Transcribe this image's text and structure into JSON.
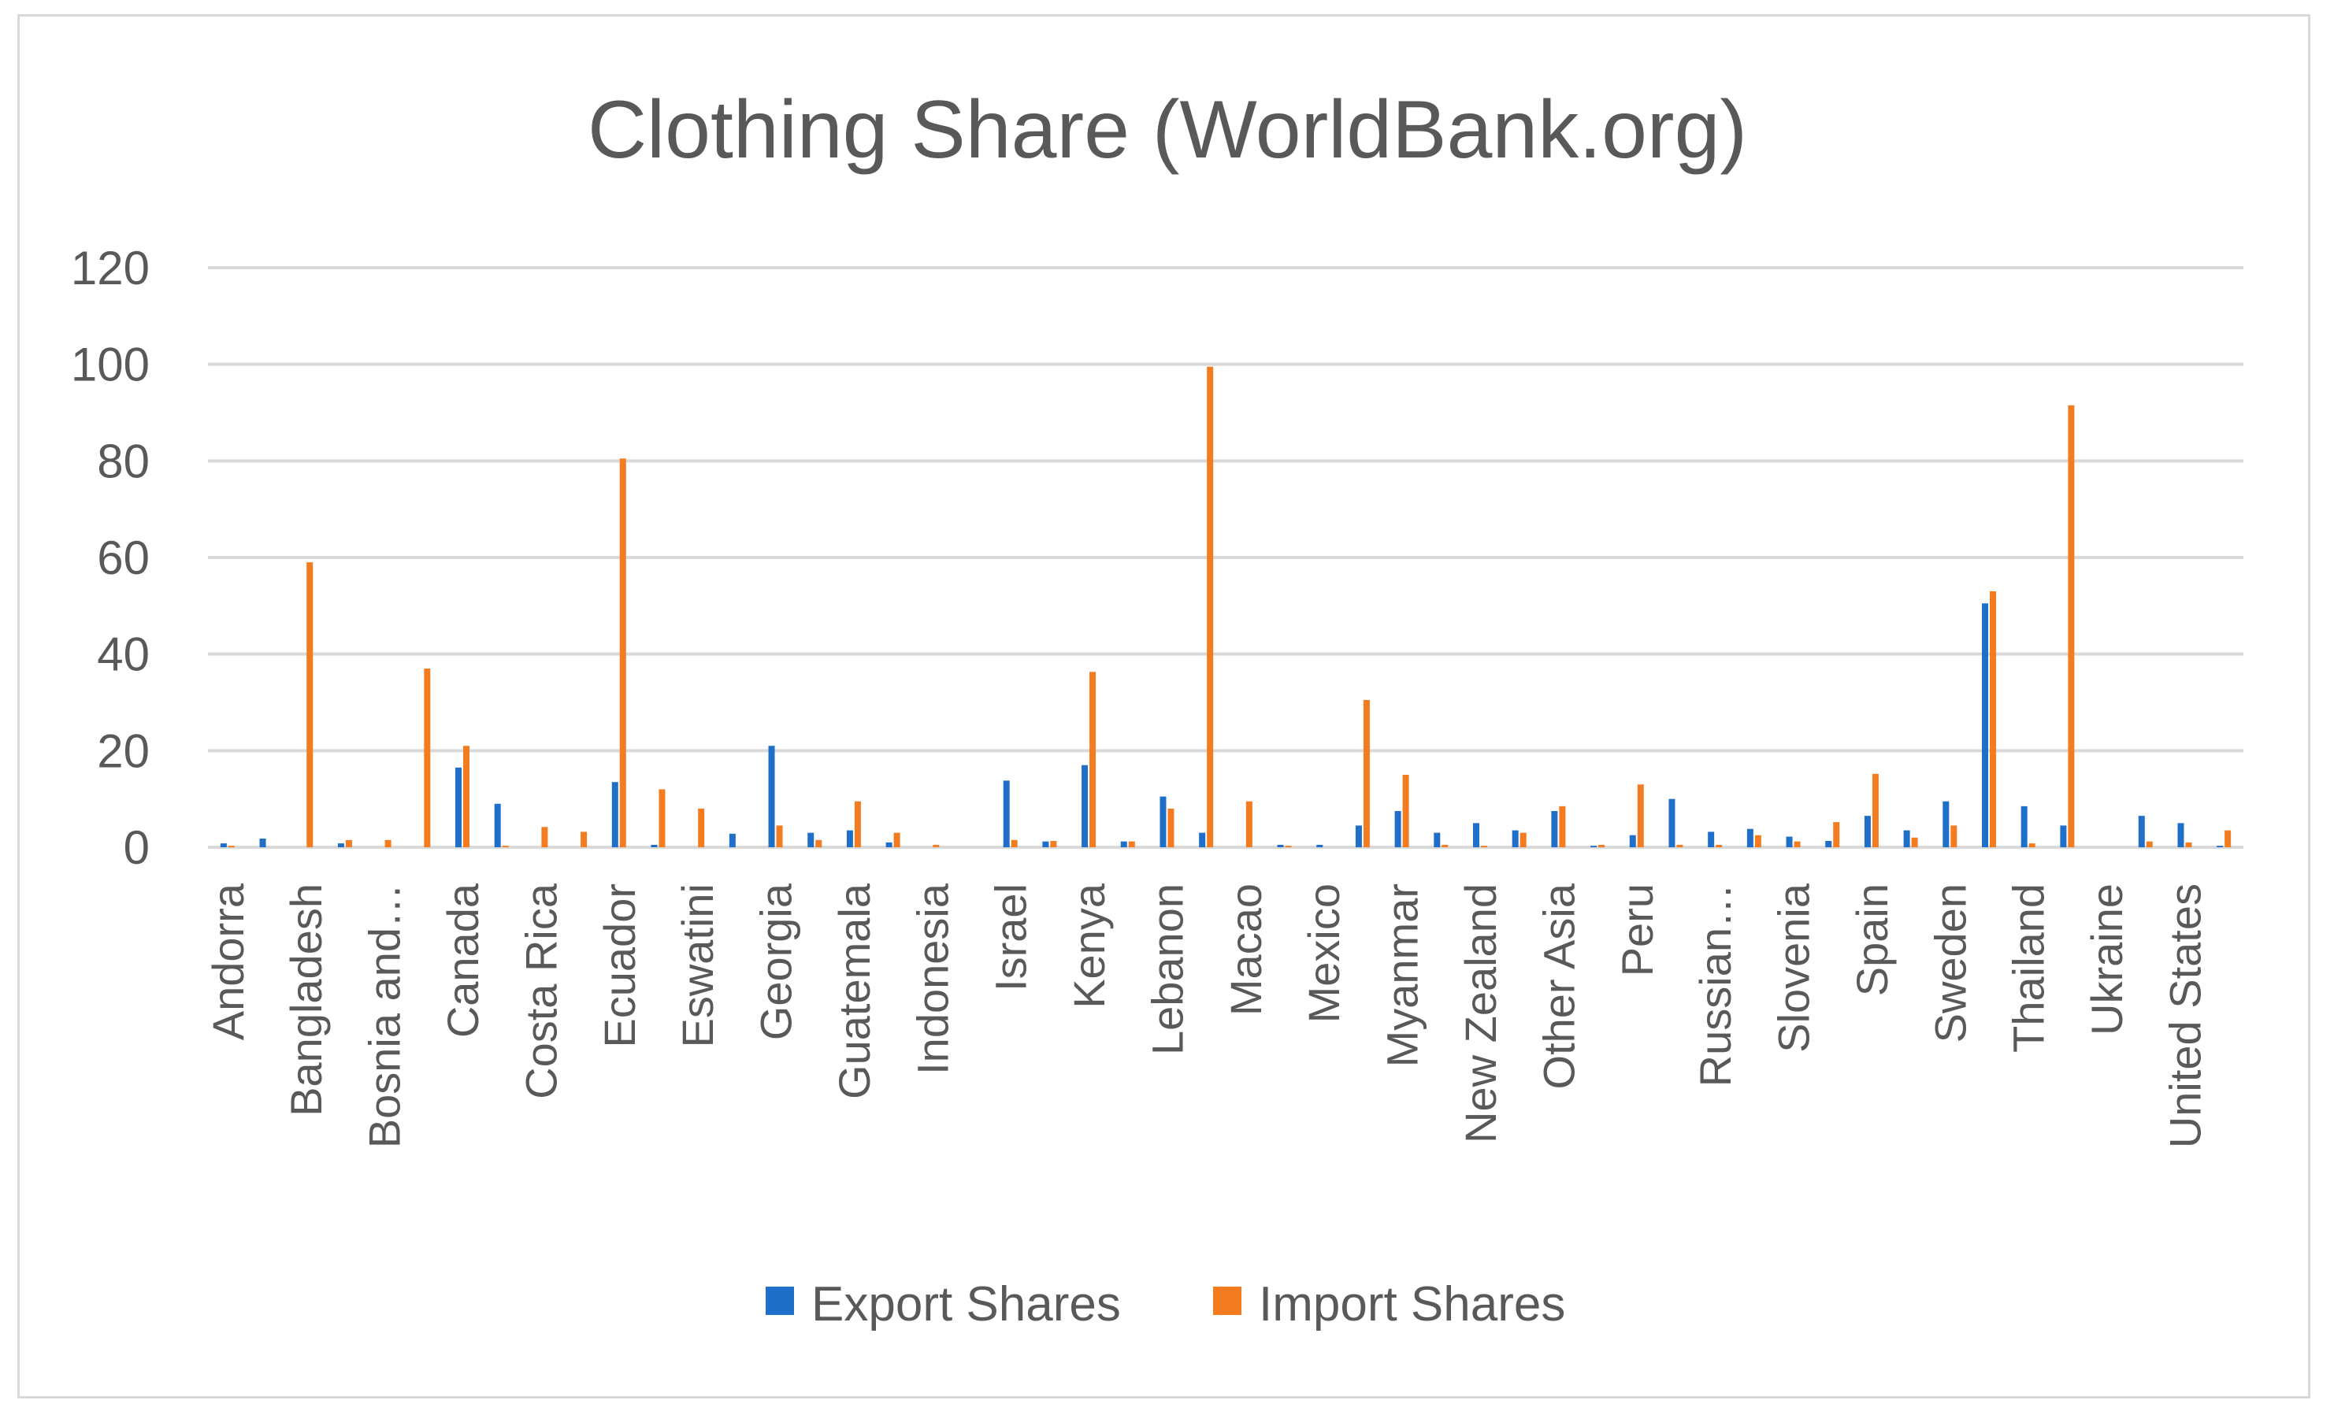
{
  "chart_data": {
    "type": "bar",
    "title": "Clothing Share (WorldBank.org)",
    "xlabel": "",
    "ylabel": "",
    "ylim": [
      0,
      120
    ],
    "yticks": [
      0,
      20,
      40,
      60,
      80,
      100,
      120
    ],
    "grid": true,
    "legend_position": "bottom",
    "categories": [
      "Andorra",
      "",
      "Bangladesh",
      "",
      "Bosnia and…",
      "",
      "Canada",
      "",
      "Costa Rica",
      "",
      "Ecuador",
      "",
      "Eswatini",
      "",
      "Georgia",
      "",
      "Guatemala",
      "",
      "Indonesia",
      "",
      "Israel",
      "",
      "Kenya",
      "",
      "Lebanon",
      "",
      "Macao",
      "",
      "Mexico",
      "",
      "Myanmar",
      "",
      "New Zealand",
      "",
      "Other Asia",
      "",
      "Peru",
      "",
      "Russian…",
      "",
      "Slovenia",
      "",
      "Spain",
      "",
      "Sweden",
      "",
      "Thailand",
      "",
      "Ukraine",
      "",
      "United States",
      ""
    ],
    "series": [
      {
        "name": "Export Shares",
        "color": "#1f6fc9",
        "values": [
          0.8,
          1.8,
          0,
          0.8,
          0,
          0,
          16.5,
          9,
          0,
          0,
          13.5,
          0.5,
          0,
          2.8,
          21,
          3,
          3.5,
          1,
          0,
          0,
          13.8,
          1.2,
          17,
          1.2,
          10.5,
          3,
          0,
          0.5,
          0.5,
          4.5,
          7.5,
          3,
          5,
          3.5,
          7.5,
          0.3,
          2.5,
          10,
          3.2,
          3.8,
          2.2,
          1.3,
          6.5,
          3.5,
          9.5,
          50.5,
          8.5,
          4.5,
          0,
          6.5,
          5,
          0.3
        ]
      },
      {
        "name": "Import Shares",
        "color": "#f47c20",
        "values": [
          0.3,
          0,
          59,
          1.5,
          1.5,
          37,
          21,
          0.3,
          4.2,
          3.2,
          80.5,
          12,
          8,
          0,
          4.5,
          1.5,
          9.5,
          3,
          0.5,
          0,
          1.5,
          1.3,
          36.3,
          1.2,
          8,
          99.5,
          9.5,
          0.3,
          0,
          30.5,
          15,
          0.5,
          0.3,
          3,
          8.5,
          0.5,
          13,
          0.5,
          0.5,
          2.5,
          1.2,
          5.2,
          15.2,
          2,
          4.5,
          53,
          0.8,
          91.5,
          0,
          1.2,
          1,
          3.5
        ]
      }
    ]
  }
}
